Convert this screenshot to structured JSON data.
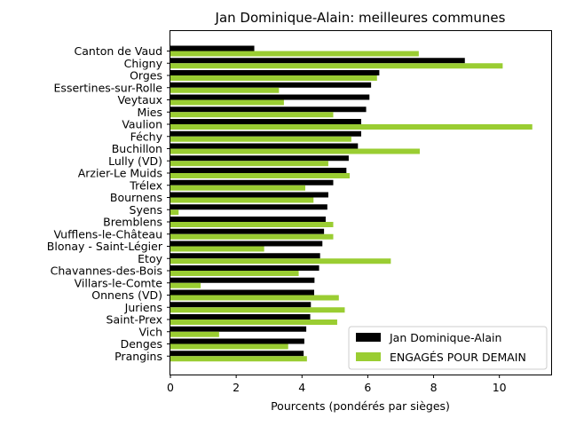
{
  "chart_data": {
    "type": "bar",
    "orientation": "horizontal",
    "title": "Jan Dominique-Alain: meilleures communes",
    "xlabel": "Pourcents (pondérés par sièges)",
    "ylabel": "",
    "xlim": [
      0,
      11.6
    ],
    "xticks": [
      0,
      2,
      4,
      6,
      8,
      10
    ],
    "grid": false,
    "legend_position": "lower-right",
    "categories": [
      "Canton de Vaud",
      "Chigny",
      "Orges",
      "Essertines-sur-Rolle",
      "Veytaux",
      "Mies",
      "Vaulion",
      "Féchy",
      "Buchillon",
      "Lully (VD)",
      "Arzier-Le Muids",
      "Trélex",
      "Bournens",
      "Syens",
      "Bremblens",
      "Vufflens-le-Château",
      "Blonay - Saint-Légier",
      "Etoy",
      "Chavannes-des-Bois",
      "Villars-le-Comte",
      "Onnens (VD)",
      "Juriens",
      "Saint-Prex",
      "Vich",
      "Denges",
      "Prangins"
    ],
    "series": [
      {
        "name": "Jan Dominique-Alain",
        "color": "#000000",
        "values": [
          2.55,
          8.95,
          6.35,
          6.1,
          6.05,
          5.95,
          5.8,
          5.8,
          5.7,
          5.42,
          5.35,
          4.95,
          4.8,
          4.77,
          4.72,
          4.67,
          4.62,
          4.55,
          4.52,
          4.38,
          4.37,
          4.27,
          4.25,
          4.13,
          4.07,
          4.05
        ]
      },
      {
        "name": "ENGAGÉS POUR DEMAIN",
        "color": "#9acd32",
        "values": [
          7.55,
          10.1,
          6.28,
          3.3,
          3.45,
          4.95,
          11.0,
          5.5,
          7.58,
          4.8,
          5.45,
          4.1,
          4.35,
          0.25,
          4.95,
          4.95,
          2.85,
          6.7,
          3.9,
          0.92,
          5.12,
          5.3,
          5.07,
          1.48,
          3.58,
          4.15
        ]
      }
    ]
  }
}
